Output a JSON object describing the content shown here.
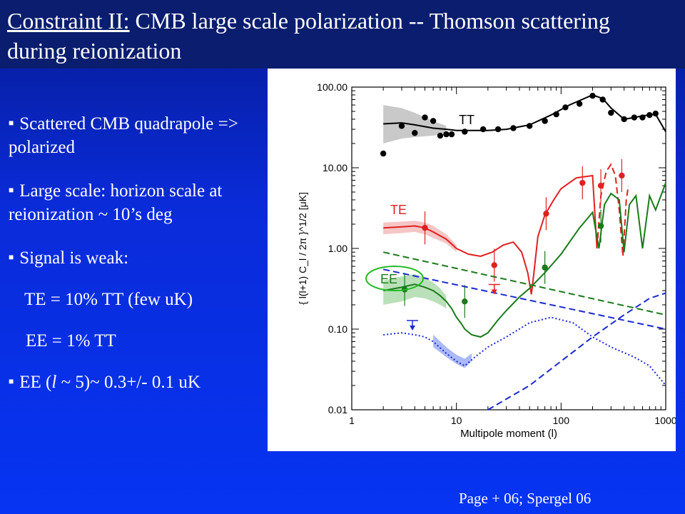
{
  "slide": {
    "title_prefix": "Constraint II:",
    "title_rest": " CMB large scale polarization -- Thomson scattering during reionization",
    "bullets": [
      {
        "text": "Scattered CMB quadrapole => polarized",
        "bulleted": true
      },
      {
        "text": "Large scale: horizon scale at reionization ~ 10’s deg",
        "bulleted": true
      },
      {
        "text": "Signal is weak:",
        "bulleted": true
      },
      {
        "text": "TE = 10% TT (few uK)",
        "bulleted": false
      },
      {
        "text": "EE = 1% TT",
        "bulleted": false
      },
      {
        "text_pre": "EE (",
        "text_italic": "l",
        "text_post": " ~ 5)~ 0.3+/- 0.1 uK",
        "bulleted": true
      }
    ],
    "credit": "Page + 06; Spergel 06"
  },
  "chart_data": {
    "type": "line",
    "xscale": "log",
    "yscale": "log",
    "xlim": [
      1,
      1000
    ],
    "ylim": [
      0.01,
      100
    ],
    "xlabel": "Multipole moment (l)",
    "ylabel": "{ l(l+1) C_l / 2π }^1/2  [μK]",
    "x_ticks": [
      "1",
      "10",
      "100",
      "1000"
    ],
    "y_ticks": [
      "0.01",
      "0.10",
      "1.00",
      "10.00",
      "100.00"
    ],
    "series_labels": [
      "TT",
      "TE",
      "EE"
    ],
    "colors": {
      "TT": "#000000",
      "TE": "#e02020",
      "EE": "#1a7a1a",
      "blue": "#1a2ad0",
      "green_dashed": "#1a7a1a"
    },
    "series": [
      {
        "name": "TT",
        "style": "solid",
        "x": [
          2,
          3,
          4,
          6,
          8,
          10,
          15,
          20,
          30,
          50,
          80,
          120,
          200,
          250,
          300,
          400,
          500,
          600,
          800,
          1000
        ],
        "y": [
          35,
          36,
          34,
          31,
          30,
          29,
          29,
          29,
          30,
          34,
          45,
          60,
          80,
          72,
          55,
          40,
          42,
          44,
          46,
          28
        ]
      },
      {
        "name": "TT",
        "style": "points",
        "x": [
          2,
          3,
          4,
          5,
          6,
          7,
          8,
          9,
          12,
          18,
          25,
          35,
          50,
          70,
          90,
          110,
          150,
          200,
          250,
          300,
          400,
          500,
          600,
          700,
          800
        ],
        "y": [
          15,
          33,
          27,
          42,
          38,
          25,
          26,
          26,
          28,
          30,
          30,
          31,
          33,
          38,
          46,
          56,
          62,
          78,
          70,
          48,
          40,
          42,
          42,
          45,
          47
        ]
      },
      {
        "name": "TE",
        "style": "solid",
        "x": [
          2,
          3,
          4,
          5,
          6,
          8,
          10,
          13,
          17,
          22,
          28,
          35,
          42,
          48,
          52,
          55,
          60,
          70,
          85,
          100,
          140,
          200,
          220
        ],
        "y": [
          1.8,
          1.85,
          1.9,
          1.8,
          1.6,
          1.3,
          1.0,
          0.85,
          0.8,
          0.9,
          1.1,
          1.2,
          0.9,
          0.5,
          0.27,
          0.5,
          1.4,
          2.6,
          4.0,
          5.5,
          7.5,
          8.0,
          1.0
        ]
      },
      {
        "name": "TE",
        "style": "dashed",
        "x": [
          220,
          240,
          270,
          300,
          330,
          360,
          390,
          420,
          440
        ],
        "y": [
          1.0,
          4.5,
          9,
          11,
          8,
          3,
          0.8,
          4,
          6
        ]
      },
      {
        "name": "TE",
        "style": "points",
        "x": [
          5,
          23,
          72,
          160,
          240,
          380
        ],
        "y": [
          1.8,
          0.62,
          2.7,
          6.5,
          6.0,
          8.0
        ]
      },
      {
        "name": "EE",
        "style": "solid",
        "x": [
          2,
          3,
          4,
          5,
          6,
          7,
          8,
          9,
          10,
          11,
          12,
          14,
          17,
          20,
          25,
          30,
          40,
          50,
          70,
          100,
          150,
          200,
          230,
          260,
          300,
          360,
          400,
          450,
          520,
          600,
          700,
          800,
          1000
        ],
        "y": [
          0.3,
          0.33,
          0.36,
          0.33,
          0.3,
          0.26,
          0.22,
          0.18,
          0.14,
          0.12,
          0.1,
          0.085,
          0.08,
          0.09,
          0.13,
          0.17,
          0.25,
          0.32,
          0.5,
          0.85,
          1.8,
          2.8,
          1.0,
          3.5,
          4.8,
          4.0,
          0.9,
          3.5,
          4.5,
          1.0,
          4.5,
          3.0,
          6.5
        ]
      },
      {
        "name": "EE",
        "style": "points",
        "x": [
          3.2,
          12,
          70,
          240
        ],
        "y": [
          0.31,
          0.22,
          0.58,
          1.9
        ]
      },
      {
        "name": "blue-dotted",
        "style": "dotted",
        "x": [
          2,
          3,
          4,
          5,
          6,
          8,
          10,
          12,
          15,
          20,
          30,
          50,
          80,
          130,
          200,
          300,
          500,
          700,
          1000
        ],
        "y": [
          0.085,
          0.09,
          0.085,
          0.08,
          0.07,
          0.05,
          0.04,
          0.035,
          0.045,
          0.06,
          0.08,
          0.12,
          0.14,
          0.12,
          0.08,
          0.06,
          0.045,
          0.035,
          0.02
        ]
      },
      {
        "name": "blue-dashed",
        "style": "dashed",
        "x": [
          2,
          1000
        ],
        "y": [
          0.55,
          0.1
        ]
      },
      {
        "name": "blue-dashed-rising",
        "style": "dashed",
        "x": [
          20,
          50,
          100,
          200,
          400,
          700,
          1000
        ],
        "y": [
          0.01,
          0.02,
          0.04,
          0.08,
          0.15,
          0.24,
          0.28
        ]
      },
      {
        "name": "green-dashed",
        "style": "dashed",
        "x": [
          2,
          1000
        ],
        "y": [
          0.9,
          0.15
        ]
      }
    ],
    "upper_limits": [
      {
        "x": 23,
        "y": 0.28,
        "color": "#e02020"
      },
      {
        "x": 3.8,
        "y": 0.1,
        "color": "#1a2ad0"
      }
    ]
  }
}
